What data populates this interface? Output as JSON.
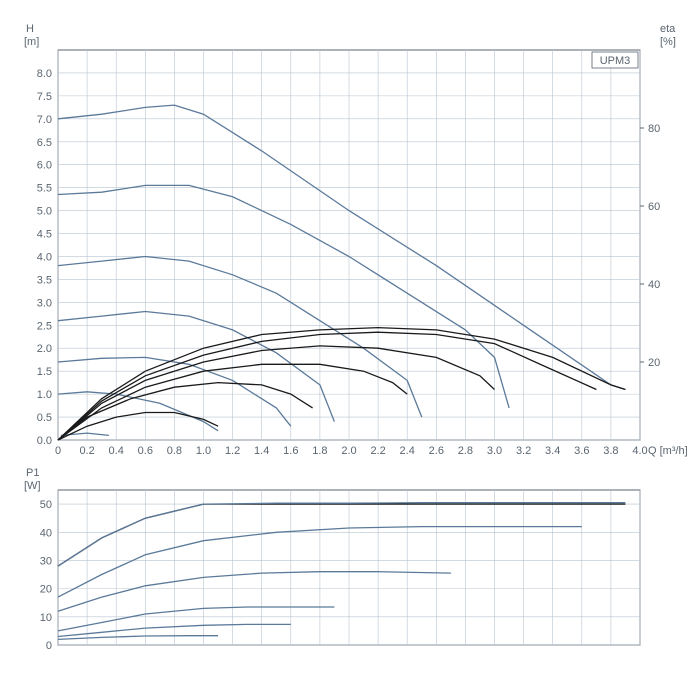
{
  "chart": {
    "title_box": "UPM3",
    "background_color": "#ffffff",
    "grid_color": "#b8c4d0",
    "axis_color": "#5a6570",
    "text_color": "#5a6570",
    "curve_blue": "#5b7a9a",
    "curve_black": "#1a1a1a",
    "tick_fontsize": 11,
    "label_fontsize": 11,
    "line_width": 1.3,
    "top_chart": {
      "type": "line",
      "y_left_label": "H",
      "y_left_unit": "[m]",
      "y_right_label": "eta",
      "y_right_unit": "[%]",
      "x_label": "Q [m³/h]",
      "xlim": [
        0,
        4.0
      ],
      "ylim_left": [
        0,
        8.5
      ],
      "ylim_right": [
        0,
        100
      ],
      "xtick_step": 0.2,
      "ytick_left_step": 0.5,
      "x_ticks": [
        0,
        0.2,
        0.4,
        0.6,
        0.8,
        1.0,
        1.2,
        1.4,
        1.6,
        1.8,
        2.0,
        2.2,
        2.4,
        2.6,
        2.8,
        3.0,
        3.2,
        3.4,
        3.6,
        3.8,
        4.0
      ],
      "y_ticks_left": [
        0.0,
        0.5,
        1.0,
        1.5,
        2.0,
        2.5,
        3.0,
        3.5,
        4.0,
        4.5,
        5.0,
        5.5,
        6.0,
        6.5,
        7.0,
        7.5,
        8.0
      ],
      "y_ticks_right": [
        20,
        40,
        60,
        80
      ],
      "blue_curves": [
        [
          [
            0,
            7.0
          ],
          [
            0.3,
            7.1
          ],
          [
            0.6,
            7.25
          ],
          [
            0.8,
            7.3
          ],
          [
            1.0,
            7.1
          ],
          [
            1.4,
            6.3
          ],
          [
            2.0,
            5.0
          ],
          [
            2.6,
            3.8
          ],
          [
            3.2,
            2.5
          ],
          [
            3.8,
            1.2
          ],
          [
            3.9,
            1.1
          ]
        ],
        [
          [
            0,
            5.35
          ],
          [
            0.3,
            5.4
          ],
          [
            0.6,
            5.55
          ],
          [
            0.9,
            5.55
          ],
          [
            1.2,
            5.3
          ],
          [
            1.6,
            4.7
          ],
          [
            2.0,
            4.0
          ],
          [
            2.4,
            3.2
          ],
          [
            2.8,
            2.4
          ],
          [
            3.0,
            1.8
          ],
          [
            3.1,
            0.7
          ]
        ],
        [
          [
            0,
            3.8
          ],
          [
            0.3,
            3.9
          ],
          [
            0.6,
            4.0
          ],
          [
            0.9,
            3.9
          ],
          [
            1.2,
            3.6
          ],
          [
            1.5,
            3.2
          ],
          [
            1.8,
            2.6
          ],
          [
            2.1,
            2.0
          ],
          [
            2.4,
            1.3
          ],
          [
            2.5,
            0.5
          ]
        ],
        [
          [
            0,
            2.6
          ],
          [
            0.3,
            2.7
          ],
          [
            0.6,
            2.8
          ],
          [
            0.9,
            2.7
          ],
          [
            1.2,
            2.4
          ],
          [
            1.5,
            1.9
          ],
          [
            1.8,
            1.2
          ],
          [
            1.9,
            0.4
          ]
        ],
        [
          [
            0,
            1.7
          ],
          [
            0.3,
            1.78
          ],
          [
            0.6,
            1.8
          ],
          [
            0.9,
            1.65
          ],
          [
            1.2,
            1.3
          ],
          [
            1.5,
            0.7
          ],
          [
            1.6,
            0.3
          ]
        ],
        [
          [
            0,
            1.0
          ],
          [
            0.2,
            1.05
          ],
          [
            0.4,
            1.0
          ],
          [
            0.7,
            0.8
          ],
          [
            1.0,
            0.4
          ],
          [
            1.1,
            0.2
          ]
        ],
        [
          [
            0.02,
            0.1
          ],
          [
            0.2,
            0.15
          ],
          [
            0.35,
            0.1
          ]
        ]
      ],
      "black_curves": [
        [
          [
            0,
            0
          ],
          [
            0.3,
            0.9
          ],
          [
            0.6,
            1.5
          ],
          [
            1.0,
            2.0
          ],
          [
            1.4,
            2.3
          ],
          [
            1.8,
            2.4
          ],
          [
            2.2,
            2.45
          ],
          [
            2.6,
            2.4
          ],
          [
            3.0,
            2.2
          ],
          [
            3.4,
            1.8
          ],
          [
            3.8,
            1.2
          ],
          [
            3.9,
            1.1
          ]
        ],
        [
          [
            0,
            0
          ],
          [
            0.3,
            0.85
          ],
          [
            0.6,
            1.4
          ],
          [
            1.0,
            1.85
          ],
          [
            1.4,
            2.15
          ],
          [
            1.8,
            2.3
          ],
          [
            2.2,
            2.35
          ],
          [
            2.6,
            2.3
          ],
          [
            3.0,
            2.1
          ],
          [
            3.35,
            1.6
          ],
          [
            3.7,
            1.1
          ]
        ],
        [
          [
            0,
            0
          ],
          [
            0.3,
            0.8
          ],
          [
            0.6,
            1.3
          ],
          [
            1.0,
            1.7
          ],
          [
            1.4,
            1.95
          ],
          [
            1.8,
            2.05
          ],
          [
            2.2,
            2.0
          ],
          [
            2.6,
            1.8
          ],
          [
            2.9,
            1.4
          ],
          [
            3.0,
            1.1
          ]
        ],
        [
          [
            0,
            0
          ],
          [
            0.3,
            0.7
          ],
          [
            0.6,
            1.15
          ],
          [
            1.0,
            1.5
          ],
          [
            1.4,
            1.65
          ],
          [
            1.8,
            1.65
          ],
          [
            2.1,
            1.5
          ],
          [
            2.3,
            1.25
          ],
          [
            2.4,
            1.0
          ]
        ],
        [
          [
            0,
            0
          ],
          [
            0.2,
            0.5
          ],
          [
            0.5,
            0.9
          ],
          [
            0.8,
            1.15
          ],
          [
            1.1,
            1.25
          ],
          [
            1.4,
            1.2
          ],
          [
            1.6,
            1.0
          ],
          [
            1.75,
            0.7
          ]
        ],
        [
          [
            0,
            0
          ],
          [
            0.2,
            0.3
          ],
          [
            0.4,
            0.5
          ],
          [
            0.6,
            0.6
          ],
          [
            0.8,
            0.6
          ],
          [
            1.0,
            0.45
          ],
          [
            1.1,
            0.3
          ]
        ]
      ]
    },
    "bottom_chart": {
      "type": "line",
      "y_label": "P1",
      "y_unit": "[W]",
      "xlim": [
        0,
        4.0
      ],
      "ylim": [
        0,
        55
      ],
      "x_ticks_hidden": true,
      "y_ticks": [
        0,
        10,
        20,
        30,
        40,
        50
      ],
      "blue_curves": [
        [
          [
            0,
            28
          ],
          [
            0.3,
            38
          ],
          [
            0.6,
            45
          ],
          [
            1.0,
            50
          ],
          [
            1.5,
            50.3
          ],
          [
            2.0,
            50.3
          ],
          [
            2.5,
            50.5
          ],
          [
            3.0,
            50.5
          ],
          [
            3.5,
            50.5
          ],
          [
            3.9,
            50.5
          ]
        ],
        [
          [
            0,
            17
          ],
          [
            0.3,
            25
          ],
          [
            0.6,
            32
          ],
          [
            1.0,
            37
          ],
          [
            1.5,
            40
          ],
          [
            2.0,
            41.5
          ],
          [
            2.5,
            42
          ],
          [
            3.0,
            42
          ],
          [
            3.6,
            42
          ]
        ],
        [
          [
            0,
            12
          ],
          [
            0.3,
            17
          ],
          [
            0.6,
            21
          ],
          [
            1.0,
            24
          ],
          [
            1.4,
            25.5
          ],
          [
            1.8,
            26
          ],
          [
            2.2,
            26
          ],
          [
            2.7,
            25.5
          ]
        ],
        [
          [
            0,
            5
          ],
          [
            0.3,
            8
          ],
          [
            0.6,
            11
          ],
          [
            1.0,
            13
          ],
          [
            1.3,
            13.5
          ],
          [
            1.6,
            13.5
          ],
          [
            1.9,
            13.5
          ]
        ],
        [
          [
            0,
            3
          ],
          [
            0.3,
            4.5
          ],
          [
            0.6,
            6
          ],
          [
            1.0,
            7
          ],
          [
            1.3,
            7.3
          ],
          [
            1.6,
            7.3
          ]
        ],
        [
          [
            0,
            2
          ],
          [
            0.3,
            2.7
          ],
          [
            0.6,
            3.2
          ],
          [
            0.9,
            3.3
          ],
          [
            1.1,
            3.3
          ]
        ]
      ],
      "black_curves": [
        [
          [
            0,
            28
          ],
          [
            0.3,
            38
          ],
          [
            0.6,
            45
          ],
          [
            1.0,
            50
          ],
          [
            1.5,
            50
          ],
          [
            2.0,
            50
          ],
          [
            2.5,
            50
          ],
          [
            3.0,
            50
          ],
          [
            3.5,
            50
          ],
          [
            3.9,
            50
          ]
        ]
      ]
    }
  }
}
